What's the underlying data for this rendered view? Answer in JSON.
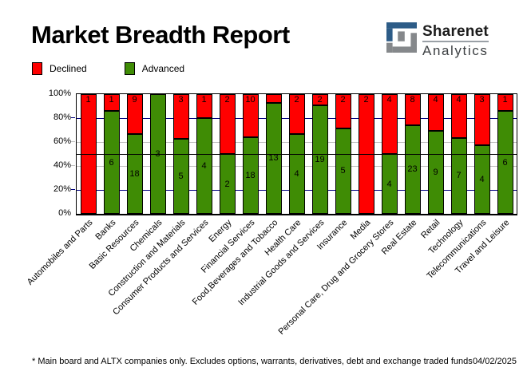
{
  "page": {
    "title": "Market Breadth Report",
    "footnote": "* Main board and ALTX companies only. Excludes options, warrants, derivatives, debt and exchange traded funds",
    "date": "04/02/2025"
  },
  "logo": {
    "line1": "Sharenet",
    "line2": "Analytics",
    "glyph": "sharenet-square-s",
    "blue": "#2d5c87",
    "gray": "#85888b"
  },
  "legend": [
    {
      "label": "Declined",
      "color": "#ff0000"
    },
    {
      "label": "Advanced",
      "color": "#3f8c05"
    }
  ],
  "colors": {
    "declined": "#ff0000",
    "advanced": "#3f8c05",
    "grid_navy": "#000080",
    "grid_silver": "#c0c0c0",
    "midline": "#000000"
  },
  "chart_data": {
    "type": "bar",
    "variant": "stacked-100-percent",
    "title": "Market Breadth Report",
    "series_names": [
      "Declined",
      "Advanced"
    ],
    "ylim": [
      0,
      100
    ],
    "y_axis": {
      "ticks": [
        {
          "label": "100%",
          "pct": 100
        },
        {
          "label": "80%",
          "pct": 80
        },
        {
          "label": "60%",
          "pct": 60
        },
        {
          "label": "40%",
          "pct": 40
        },
        {
          "label": "20%",
          "pct": 20
        },
        {
          "label": "0%",
          "pct": 0
        }
      ]
    },
    "gridlines": [
      {
        "pct": 80,
        "color": "grid_navy"
      },
      {
        "pct": 60,
        "color": "grid_silver"
      },
      {
        "pct": 40,
        "color": "grid_silver"
      },
      {
        "pct": 20,
        "color": "grid_navy"
      }
    ],
    "midline_pct": 50,
    "bars": [
      {
        "category": "Automobiles and Parts",
        "declined": 1,
        "advanced": 0,
        "declined_label": "1",
        "advanced_label": ""
      },
      {
        "category": "Banks",
        "declined": 1,
        "advanced": 6,
        "declined_label": "1",
        "advanced_label": "6"
      },
      {
        "category": "Basic Resources",
        "declined": 9,
        "advanced": 18,
        "declined_label": "9",
        "advanced_label": "18"
      },
      {
        "category": "Chemicals",
        "declined": 0,
        "advanced": 3,
        "declined_label": "",
        "advanced_label": "3"
      },
      {
        "category": "Construction and Materials",
        "declined": 3,
        "advanced": 5,
        "declined_label": "3",
        "advanced_label": "5"
      },
      {
        "category": "Consumer Products and Services",
        "declined": 1,
        "advanced": 4,
        "declined_label": "1",
        "advanced_label": "4"
      },
      {
        "category": "Energy",
        "declined": 2,
        "advanced": 2,
        "declined_label": "2",
        "advanced_label": "2"
      },
      {
        "category": "Financial Services",
        "declined": 10,
        "advanced": 18,
        "declined_label": "10",
        "advanced_label": "18"
      },
      {
        "category": "Food,Beverages and Tobacco",
        "declined": 1,
        "advanced": 13,
        "declined_label": "",
        "advanced_label": "13"
      },
      {
        "category": "Health Care",
        "declined": 2,
        "advanced": 4,
        "declined_label": "2",
        "advanced_label": "4"
      },
      {
        "category": "Industrial Goods and Services",
        "declined": 2,
        "advanced": 19,
        "declined_label": "2",
        "advanced_label": "19"
      },
      {
        "category": "Insurance",
        "declined": 2,
        "advanced": 5,
        "declined_label": "2",
        "advanced_label": "5"
      },
      {
        "category": "Media",
        "declined": 2,
        "advanced": 0,
        "declined_label": "2",
        "advanced_label": ""
      },
      {
        "category": "Personal Care, Drug and Grocery Stores",
        "declined": 4,
        "advanced": 4,
        "declined_label": "4",
        "advanced_label": "4"
      },
      {
        "category": "Real Estate",
        "declined": 8,
        "advanced": 23,
        "declined_label": "8",
        "advanced_label": "23"
      },
      {
        "category": "Retail",
        "declined": 4,
        "advanced": 9,
        "declined_label": "4",
        "advanced_label": "9"
      },
      {
        "category": "Technology",
        "declined": 4,
        "advanced": 7,
        "declined_label": "4",
        "advanced_label": "7"
      },
      {
        "category": "Telecommunications",
        "declined": 3,
        "advanced": 4,
        "declined_label": "3",
        "advanced_label": "4"
      },
      {
        "category": "Travel and Leisure",
        "declined": 1,
        "advanced": 6,
        "declined_label": "1",
        "advanced_label": "6"
      }
    ]
  }
}
